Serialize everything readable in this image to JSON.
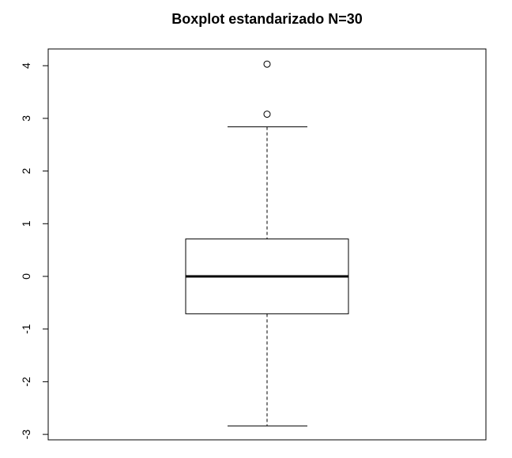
{
  "chart_data": {
    "type": "boxplot",
    "title": "Boxplot estandarizado N=30",
    "xlabel": "",
    "ylabel": "",
    "ylim": [
      -3.1,
      4.3
    ],
    "yticks": [
      -3,
      -2,
      -1,
      0,
      1,
      2,
      3,
      4
    ],
    "grid": false,
    "legend": "none",
    "box": {
      "whisker_low": -2.84,
      "q1": -0.71,
      "median": 0.0,
      "q3": 0.71,
      "whisker_high": 2.84
    },
    "outliers": [
      3.08,
      4.03
    ],
    "colors": {
      "stroke": "#000000",
      "fill": "#ffffff",
      "background": "#ffffff"
    }
  }
}
